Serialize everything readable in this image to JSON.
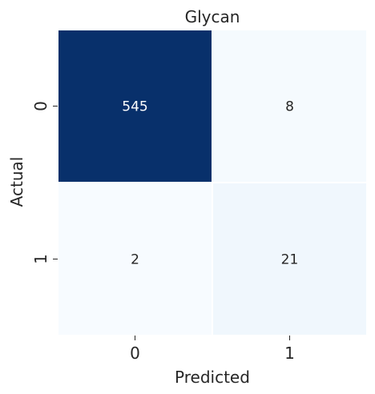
{
  "chart_data": {
    "type": "heatmap",
    "title": "Glycan",
    "xlabel": "Predicted",
    "ylabel": "Actual",
    "x_categories": [
      "0",
      "1"
    ],
    "y_categories": [
      "0",
      "1"
    ],
    "values": [
      [
        545,
        8
      ],
      [
        2,
        21
      ]
    ],
    "colormap": "Blues",
    "colorbar": false,
    "grid_lines_color": "#ffffff"
  }
}
